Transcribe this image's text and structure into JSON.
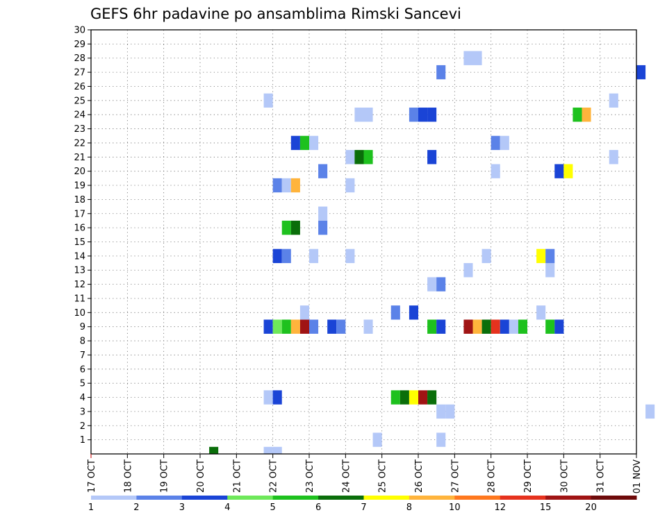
{
  "chart_data": {
    "type": "heatmap",
    "title": "GEFS 6hr padavine po ansamblima Rimski Sancevi",
    "xlabel": "",
    "ylabel": "",
    "x_ticks": [
      "17 OCT",
      "18 OCT",
      "19 OCT",
      "20 OCT",
      "21 OCT",
      "22 OCT",
      "23 OCT",
      "24 OCT",
      "25 OCT",
      "26 OCT",
      "27 OCT",
      "28 OCT",
      "29 OCT",
      "30 OCT",
      "31 OCT",
      "01 NOV"
    ],
    "y_ticks": [
      1,
      2,
      3,
      4,
      5,
      6,
      7,
      8,
      9,
      10,
      11,
      12,
      13,
      14,
      15,
      16,
      17,
      18,
      19,
      20,
      21,
      22,
      23,
      24,
      25,
      26,
      27,
      28,
      29,
      30
    ],
    "y_range": [
      0,
      30
    ],
    "x_range_days": [
      0,
      15
    ],
    "grid": true,
    "colorbar": {
      "labels": [
        "1",
        "2",
        "3",
        "4",
        "5",
        "6",
        "7",
        "8",
        "10",
        "12",
        "15",
        "20"
      ],
      "colors": [
        "#b4c8f8",
        "#5b82e8",
        "#1a44d6",
        "#6ee85a",
        "#1ec11e",
        "#0a6e0a",
        "#ffff00",
        "#ffb43c",
        "#ff781e",
        "#e6321e",
        "#a01414",
        "#6e0a0a"
      ]
    },
    "cells": [
      {
        "t": 13,
        "m": 0,
        "v": 6
      },
      {
        "t": 19,
        "m": 0,
        "v": 1
      },
      {
        "t": 20,
        "m": 0,
        "v": 1
      },
      {
        "t": 31,
        "m": 1,
        "v": 1
      },
      {
        "t": 38,
        "m": 1,
        "v": 1
      },
      {
        "t": 38,
        "m": 3,
        "v": 1
      },
      {
        "t": 39,
        "m": 3,
        "v": 1
      },
      {
        "t": 61,
        "m": 3,
        "v": 1
      },
      {
        "t": 19,
        "m": 4,
        "v": 1
      },
      {
        "t": 20,
        "m": 4,
        "v": 3
      },
      {
        "t": 33,
        "m": 4,
        "v": 5
      },
      {
        "t": 34,
        "m": 4,
        "v": 6
      },
      {
        "t": 35,
        "m": 4,
        "v": 7
      },
      {
        "t": 36,
        "m": 4,
        "v": 15
      },
      {
        "t": 37,
        "m": 4,
        "v": 6
      },
      {
        "t": 19,
        "m": 9,
        "v": 3
      },
      {
        "t": 20,
        "m": 9,
        "v": 4
      },
      {
        "t": 21,
        "m": 9,
        "v": 5
      },
      {
        "t": 22,
        "m": 9,
        "v": 8
      },
      {
        "t": 23,
        "m": 9,
        "v": 15
      },
      {
        "t": 24,
        "m": 9,
        "v": 2
      },
      {
        "t": 26,
        "m": 9,
        "v": 3
      },
      {
        "t": 27,
        "m": 9,
        "v": 2
      },
      {
        "t": 30,
        "m": 9,
        "v": 1
      },
      {
        "t": 37,
        "m": 9,
        "v": 5
      },
      {
        "t": 38,
        "m": 9,
        "v": 3
      },
      {
        "t": 41,
        "m": 9,
        "v": 15
      },
      {
        "t": 42,
        "m": 9,
        "v": 8
      },
      {
        "t": 43,
        "m": 9,
        "v": 6
      },
      {
        "t": 44,
        "m": 9,
        "v": 12
      },
      {
        "t": 45,
        "m": 9,
        "v": 3
      },
      {
        "t": 46,
        "m": 9,
        "v": 1
      },
      {
        "t": 47,
        "m": 9,
        "v": 5
      },
      {
        "t": 50,
        "m": 9,
        "v": 5
      },
      {
        "t": 51,
        "m": 9,
        "v": 3
      },
      {
        "t": 23,
        "m": 10,
        "v": 1
      },
      {
        "t": 33,
        "m": 10,
        "v": 2
      },
      {
        "t": 35,
        "m": 10,
        "v": 3
      },
      {
        "t": 49,
        "m": 10,
        "v": 1
      },
      {
        "t": 37,
        "m": 12,
        "v": 1
      },
      {
        "t": 38,
        "m": 12,
        "v": 2
      },
      {
        "t": 41,
        "m": 13,
        "v": 1
      },
      {
        "t": 50,
        "m": 13,
        "v": 1
      },
      {
        "t": 20,
        "m": 14,
        "v": 3
      },
      {
        "t": 21,
        "m": 14,
        "v": 2
      },
      {
        "t": 24,
        "m": 14,
        "v": 1
      },
      {
        "t": 28,
        "m": 14,
        "v": 1
      },
      {
        "t": 43,
        "m": 14,
        "v": 1
      },
      {
        "t": 49,
        "m": 14,
        "v": 7
      },
      {
        "t": 50,
        "m": 14,
        "v": 2
      },
      {
        "t": 21,
        "m": 16,
        "v": 5
      },
      {
        "t": 22,
        "m": 16,
        "v": 6
      },
      {
        "t": 25,
        "m": 16,
        "v": 2
      },
      {
        "t": 25,
        "m": 17,
        "v": 1
      },
      {
        "t": 20,
        "m": 19,
        "v": 2
      },
      {
        "t": 21,
        "m": 19,
        "v": 1
      },
      {
        "t": 22,
        "m": 19,
        "v": 8
      },
      {
        "t": 28,
        "m": 19,
        "v": 1
      },
      {
        "t": 25,
        "m": 20,
        "v": 2
      },
      {
        "t": 44,
        "m": 20,
        "v": 1
      },
      {
        "t": 51,
        "m": 20,
        "v": 3
      },
      {
        "t": 52,
        "m": 20,
        "v": 7
      },
      {
        "t": 28,
        "m": 21,
        "v": 1
      },
      {
        "t": 29,
        "m": 21,
        "v": 6
      },
      {
        "t": 30,
        "m": 21,
        "v": 5
      },
      {
        "t": 37,
        "m": 21,
        "v": 3
      },
      {
        "t": 57,
        "m": 21,
        "v": 1
      },
      {
        "t": 22,
        "m": 22,
        "v": 3
      },
      {
        "t": 23,
        "m": 22,
        "v": 5
      },
      {
        "t": 24,
        "m": 22,
        "v": 1
      },
      {
        "t": 44,
        "m": 22,
        "v": 2
      },
      {
        "t": 45,
        "m": 22,
        "v": 1
      },
      {
        "t": 29,
        "m": 24,
        "v": 1
      },
      {
        "t": 30,
        "m": 24,
        "v": 1
      },
      {
        "t": 35,
        "m": 24,
        "v": 2
      },
      {
        "t": 36,
        "m": 24,
        "v": 3
      },
      {
        "t": 37,
        "m": 24,
        "v": 3
      },
      {
        "t": 53,
        "m": 24,
        "v": 5
      },
      {
        "t": 54,
        "m": 24,
        "v": 8
      },
      {
        "t": 19,
        "m": 25,
        "v": 1
      },
      {
        "t": 57,
        "m": 25,
        "v": 1
      },
      {
        "t": 38,
        "m": 27,
        "v": 2
      },
      {
        "t": 60,
        "m": 27,
        "v": 3
      },
      {
        "t": 41,
        "m": 28,
        "v": 1
      },
      {
        "t": 42,
        "m": 28,
        "v": 1
      }
    ]
  }
}
